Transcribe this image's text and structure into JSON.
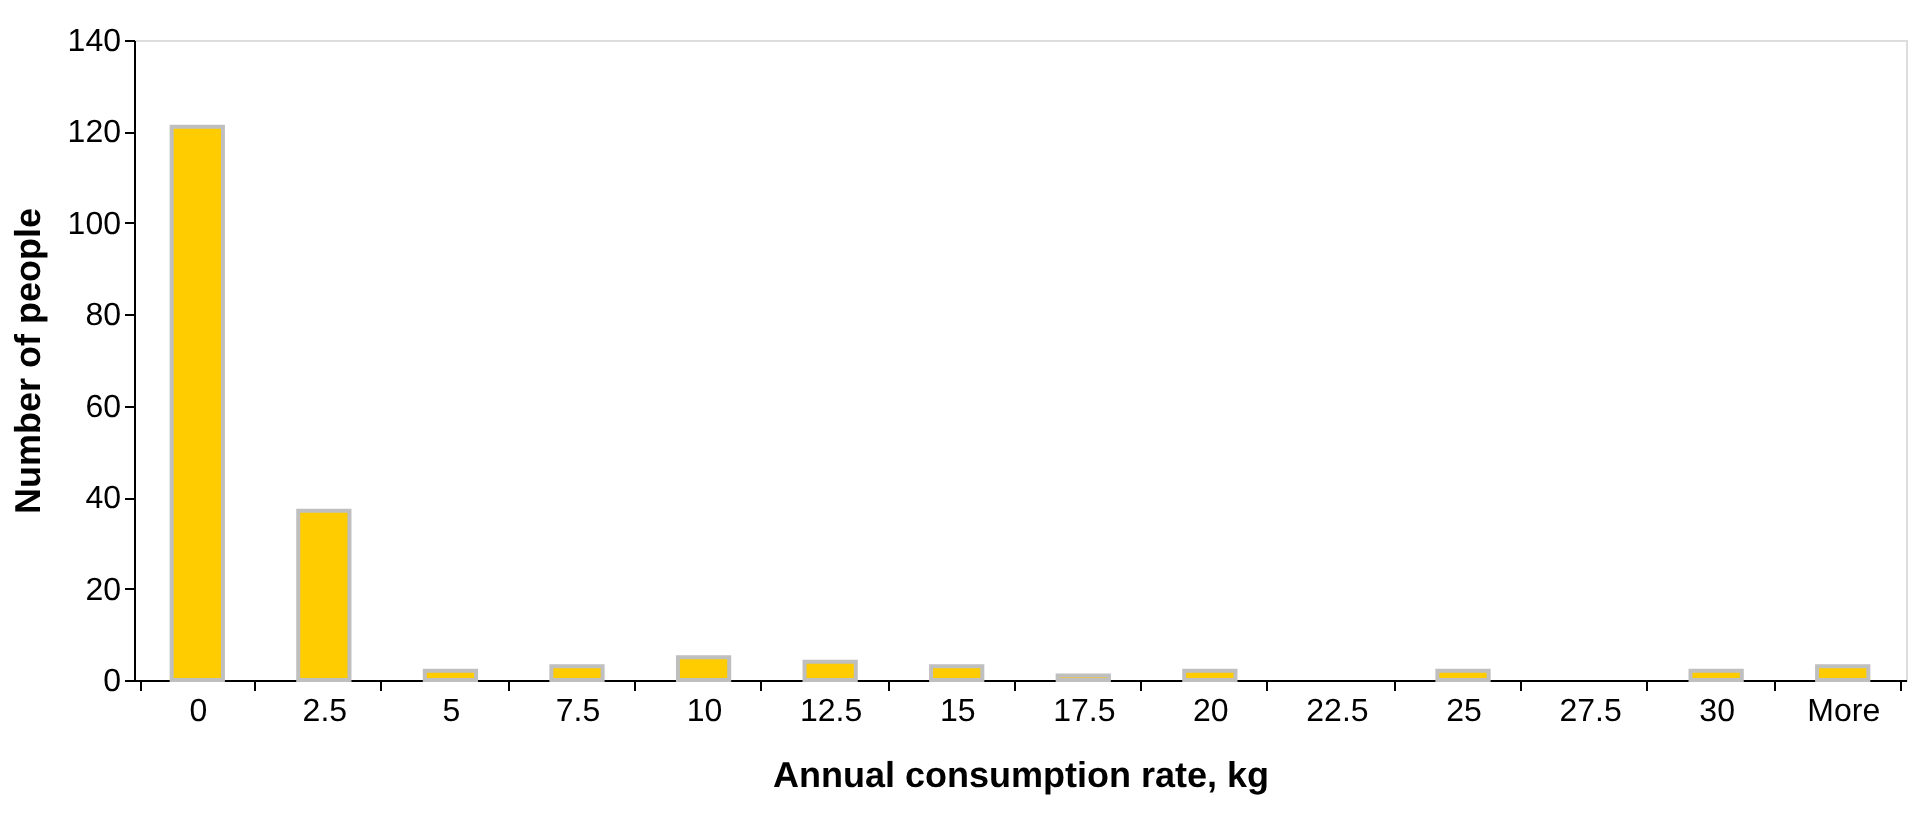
{
  "chart_data": {
    "type": "bar",
    "xlabel": "Annual consumption rate, kg",
    "ylabel": "Number of people",
    "categories": [
      "0",
      "2.5",
      "5",
      "7.5",
      "10",
      "12.5",
      "15",
      "17.5",
      "20",
      "22.5",
      "25",
      "27.5",
      "30",
      "More"
    ],
    "values": [
      121,
      37,
      2,
      3,
      5,
      4,
      3,
      1,
      2,
      0,
      2,
      0,
      2,
      3
    ],
    "color": "#ffcc00",
    "ylim": [
      0,
      140
    ],
    "yticks": [
      0,
      20,
      40,
      60,
      80,
      100,
      120,
      140
    ],
    "grid": false
  }
}
